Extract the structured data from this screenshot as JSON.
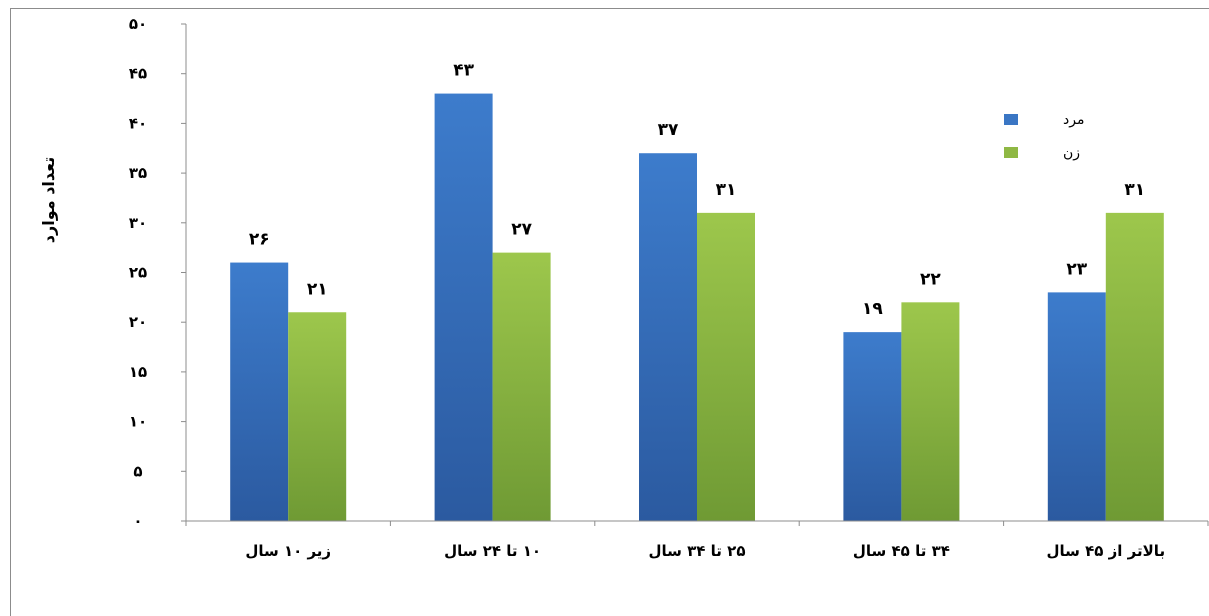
{
  "chart_data": {
    "type": "bar",
    "ylabel": "تعداد موارد",
    "xlabel": "",
    "ylim": [
      0,
      50
    ],
    "yticks": [
      0,
      5,
      10,
      15,
      20,
      25,
      30,
      35,
      40,
      45,
      50
    ],
    "ytick_labels": [
      "۰",
      "۵",
      "۱۰",
      "۱۵",
      "۲۰",
      "۲۵",
      "۳۰",
      "۳۵",
      "۴۰",
      "۴۵",
      "۵۰"
    ],
    "categories": [
      "زیر ۱۰ سال",
      "۱۰ تا ۲۴ سال",
      "۲۵ تا ۳۴ سال",
      "۳۴ تا ۴۵ سال",
      "بالاتر از ۴۵ سال"
    ],
    "series": [
      {
        "name": "مرد",
        "color": "#3a76c4",
        "values": [
          26,
          43,
          37,
          19,
          23
        ],
        "labels": [
          "۲۶",
          "۴۳",
          "۳۷",
          "۱۹",
          "۲۳"
        ]
      },
      {
        "name": "زن",
        "color": "#8fb844",
        "values": [
          21,
          27,
          31,
          22,
          31
        ],
        "labels": [
          "۲۱",
          "۲۷",
          "۳۱",
          "۲۲",
          "۳۱"
        ]
      }
    ],
    "grid": false,
    "legend_position": "right"
  }
}
